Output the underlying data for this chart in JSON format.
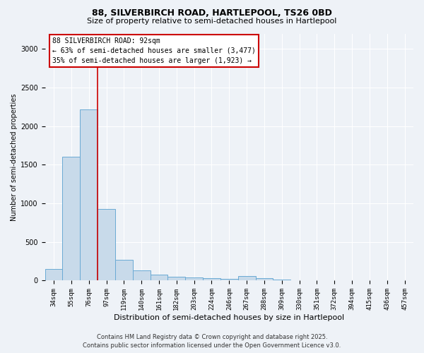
{
  "title1": "88, SILVERBIRCH ROAD, HARTLEPOOL, TS26 0BD",
  "title2": "Size of property relative to semi-detached houses in Hartlepool",
  "xlabel": "Distribution of semi-detached houses by size in Hartlepool",
  "ylabel": "Number of semi-detached properties",
  "categories": [
    "34sqm",
    "55sqm",
    "76sqm",
    "97sqm",
    "119sqm",
    "140sqm",
    "161sqm",
    "182sqm",
    "203sqm",
    "224sqm",
    "246sqm",
    "267sqm",
    "288sqm",
    "309sqm",
    "330sqm",
    "351sqm",
    "372sqm",
    "394sqm",
    "415sqm",
    "436sqm",
    "457sqm"
  ],
  "values": [
    155,
    1600,
    2220,
    930,
    270,
    135,
    80,
    50,
    40,
    30,
    20,
    55,
    30,
    15,
    5,
    3,
    2,
    2,
    1,
    1,
    1
  ],
  "bar_color": "#c8daea",
  "bar_edge_color": "#6aaad4",
  "vline_color": "#cc0000",
  "vline_pos": 2.5,
  "annotation_title": "88 SILVERBIRCH ROAD: 92sqm",
  "annotation_line1": "← 63% of semi-detached houses are smaller (3,477)",
  "annotation_line2": "35% of semi-detached houses are larger (1,923) →",
  "annotation_box_color": "#cc0000",
  "ylim": [
    0,
    3200
  ],
  "yticks": [
    0,
    500,
    1000,
    1500,
    2000,
    2500,
    3000
  ],
  "footnote1": "Contains HM Land Registry data © Crown copyright and database right 2025.",
  "footnote2": "Contains public sector information licensed under the Open Government Licence v3.0.",
  "bg_color": "#eef2f7",
  "plot_bg_color": "#eef2f7",
  "grid_color": "#ffffff",
  "title1_fontsize": 9,
  "title2_fontsize": 8,
  "xlabel_fontsize": 8,
  "ylabel_fontsize": 7,
  "tick_fontsize": 6.5,
  "footnote_fontsize": 6
}
